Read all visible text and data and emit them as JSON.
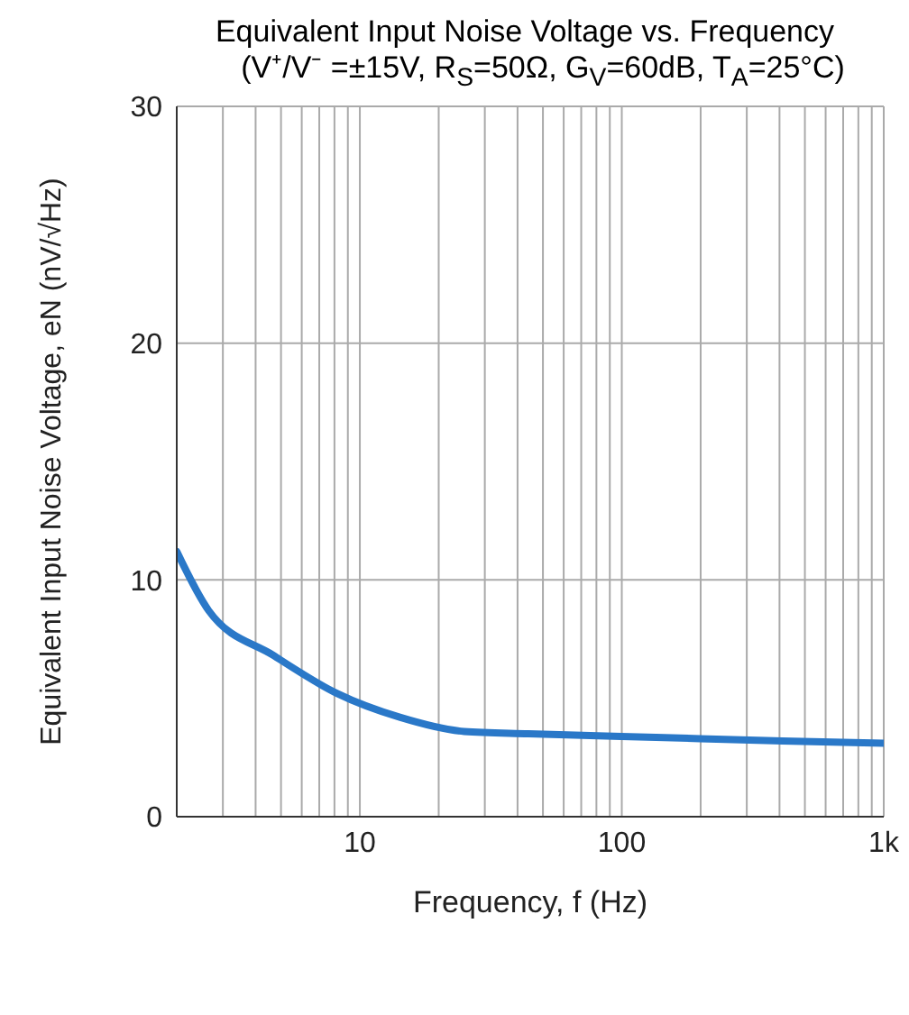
{
  "chart_data": {
    "type": "line",
    "title": "Equivalent Input Noise Voltage vs. Frequency",
    "subtitle": "(V⁺/V⁻ =±15V, R$_{S}$=50Ω, G$_{V}$=60dB, T$_{A}$=25°C)",
    "xlabel": "Frequency, f (Hz)",
    "ylabel": "Equivalent Input Noise Voltage, eN (nV/√Hz)",
    "x": [
      2,
      2.65,
      4.7,
      8.2,
      14.2,
      25,
      44,
      135,
      410,
      1000
    ],
    "series": [
      {
        "color": "#2a78c8",
        "values": [
          11.2,
          8.7,
          6.8,
          5.2,
          4.2,
          3.6,
          3.5,
          3.35,
          3.2,
          3.1
        ]
      }
    ],
    "log": "x",
    "grid": true,
    "legend": false,
    "marker": "none",
    "line_style": "solid",
    "xlim": [
      2,
      1000
    ],
    "ylim": [
      0,
      30
    ],
    "yticks": [
      0,
      10,
      20,
      30
    ],
    "xticks": [
      {
        "value": 2,
        "label": null
      },
      {
        "value": 3,
        "label": null
      },
      {
        "value": 4,
        "label": null
      },
      {
        "value": 5,
        "label": null
      },
      {
        "value": 6,
        "label": null
      },
      {
        "value": 7,
        "label": null
      },
      {
        "value": 8,
        "label": null
      },
      {
        "value": 9,
        "label": null
      },
      10,
      {
        "value": 20,
        "label": null
      },
      {
        "value": 30,
        "label": null
      },
      {
        "value": 40,
        "label": null
      },
      {
        "value": 50,
        "label": null
      },
      {
        "value": 60,
        "label": null
      },
      {
        "value": 70,
        "label": null
      },
      {
        "value": 80,
        "label": null
      },
      {
        "value": 90,
        "label": null
      },
      100,
      {
        "value": 200,
        "label": null
      },
      {
        "value": 300,
        "label": null
      },
      {
        "value": 400,
        "label": null
      },
      {
        "value": 500,
        "label": null
      },
      {
        "value": 600,
        "label": null
      },
      {
        "value": 700,
        "label": null
      },
      {
        "value": 800,
        "label": null
      },
      {
        "value": 900,
        "label": null
      },
      {
        "value": 1000,
        "label": "1k"
      }
    ]
  }
}
